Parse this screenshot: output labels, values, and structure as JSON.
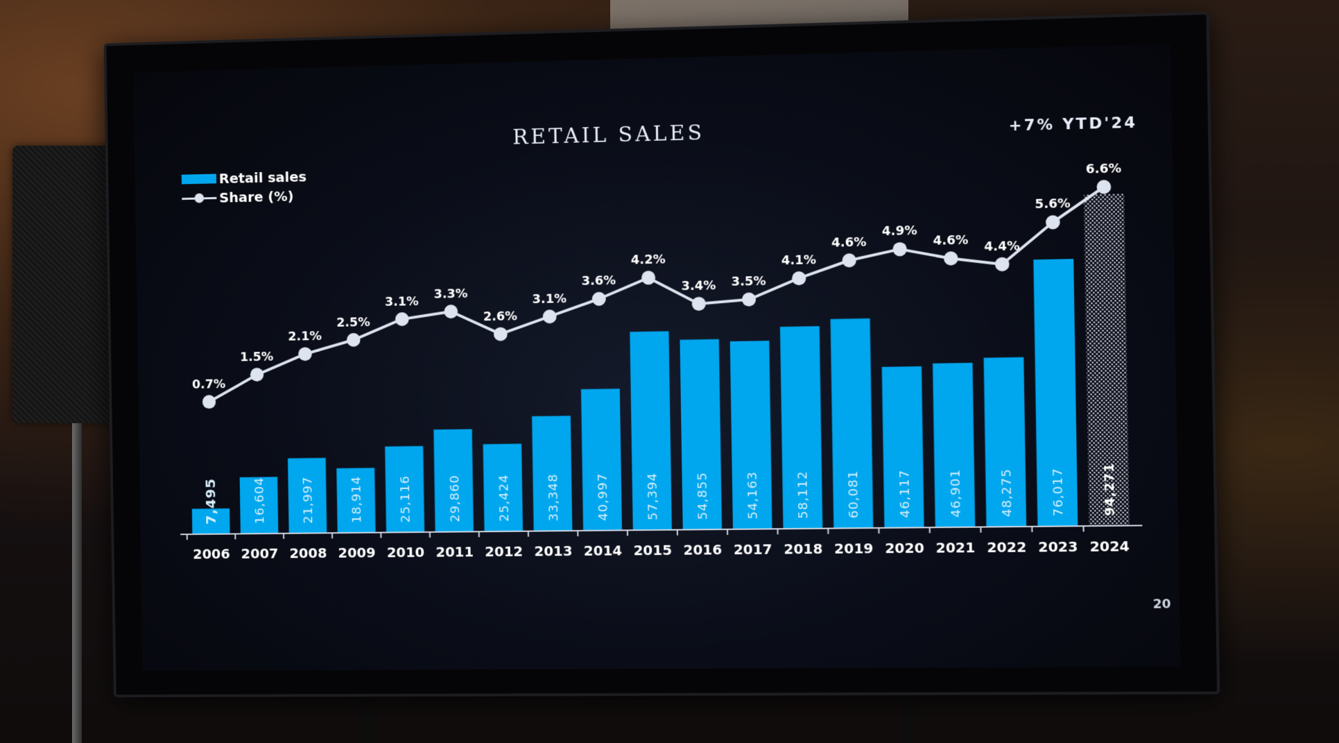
{
  "header": {
    "title": "RETAIL SALES",
    "ytd_label": "+7% YTD'24",
    "corner_note": "20"
  },
  "legend": {
    "bar_label": "Retail sales",
    "line_label": "Share (%)"
  },
  "colors": {
    "bar": "#00a7ee",
    "line": "#dde4ef",
    "text": "#ffffff"
  },
  "chart_data": {
    "type": "bar",
    "title": "RETAIL SALES",
    "categories": [
      "2006",
      "2007",
      "2008",
      "2009",
      "2010",
      "2011",
      "2012",
      "2013",
      "2014",
      "2015",
      "2016",
      "2017",
      "2018",
      "2019",
      "2020",
      "2021",
      "2022",
      "2023",
      "2024"
    ],
    "series": [
      {
        "name": "Retail sales",
        "type": "bar",
        "values": [
          7495,
          16604,
          21997,
          18914,
          25116,
          29860,
          25424,
          33348,
          40997,
          57394,
          54855,
          54163,
          58112,
          60081,
          46117,
          46901,
          48275,
          76017,
          94271
        ],
        "labels": [
          "7,495",
          "16,604",
          "21,997",
          "18,914",
          "25,116",
          "29,860",
          "25,424",
          "33,348",
          "40,997",
          "57,394",
          "54,855",
          "54,163",
          "58,112",
          "60,081",
          "46,117",
          "46,901",
          "48,275",
          "76,017",
          "94,271"
        ]
      },
      {
        "name": "Share (%)",
        "type": "line",
        "values": [
          0.7,
          1.5,
          2.1,
          2.5,
          3.1,
          3.3,
          2.6,
          3.1,
          3.6,
          4.2,
          3.4,
          3.5,
          4.1,
          4.6,
          4.9,
          4.6,
          4.4,
          5.6,
          6.6
        ],
        "labels": [
          "0.7%",
          "1.5%",
          "2.1%",
          "2.5%",
          "3.1%",
          "3.3%",
          "2.6%",
          "3.1%",
          "3.6%",
          "4.2%",
          "3.4%",
          "3.5%",
          "4.1%",
          "4.6%",
          "4.9%",
          "4.6%",
          "4.4%",
          "5.6%",
          "6.6%"
        ]
      }
    ],
    "estimated_last_bar": true,
    "grid": false,
    "legend_position": "top-left"
  }
}
